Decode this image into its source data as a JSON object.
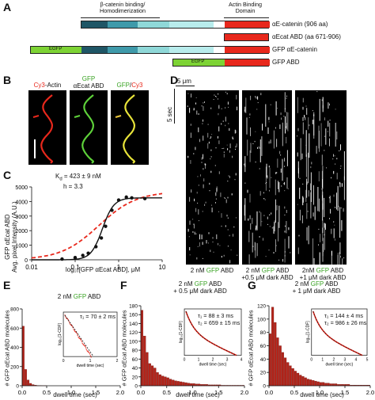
{
  "panel_labels": {
    "A": "A",
    "B": "B",
    "C": "C",
    "D": "D",
    "E": "E",
    "F": "F",
    "G": "G"
  },
  "panel_a": {
    "beta_catenin_label": "β-catenin binding/ Homodimerization",
    "abd_label": "Actin Binding Domain",
    "rows": [
      {
        "label": "αE-catenin (906 aa)"
      },
      {
        "label": "αEcat ABD (aa 671-906)"
      },
      {
        "label": "GFP αE-catenin",
        "tag": "EGFP"
      },
      {
        "label": "GFP ABD",
        "tag": "EGFP"
      }
    ],
    "colors": {
      "dark_teal": "#1f5666",
      "mid_teal": "#3f9aaa",
      "light_teal": "#8fd8d8",
      "pale_teal": "#b8ecec",
      "abd_red": "#e8281c",
      "egfp_green": "#7dd334"
    }
  },
  "panel_b": {
    "col1_parts": [
      "Cy3",
      "-Actin"
    ],
    "col2_parts": [
      "GFP",
      "αEcat ABD"
    ],
    "col3_parts": [
      "GFP",
      "/",
      "Cy3"
    ]
  },
  "panel_c": {
    "kd_text": "K",
    "kd_sub": "d",
    "kd_value": " = 423 ± 9 nM",
    "h_text": "h = 3.3",
    "ylabel_line1": "GFP αEcat ABD",
    "ylabel_line2": "Avg. pixel Intensity (A.U.)",
    "xlabel": "log₁₀[GFP αEcat ABD], μM",
    "chart_data": {
      "type": "scatter",
      "x_scale": "log",
      "xlim": [
        0.01,
        10
      ],
      "ylim": [
        0,
        5000
      ],
      "x_ticks": [
        "0.01",
        "0.1",
        "1",
        "10"
      ],
      "y_ticks": [
        "0",
        "1000",
        "2000",
        "3000",
        "4000",
        "5000"
      ],
      "series": [
        {
          "points": [
            [
              0.05,
              50
            ],
            [
              0.1,
              150
            ],
            [
              0.15,
              300
            ],
            [
              0.2,
              450
            ],
            [
              0.3,
              900
            ],
            [
              0.4,
              1500
            ],
            [
              0.5,
              2300
            ],
            [
              0.7,
              3400
            ],
            [
              1.0,
              4100
            ],
            [
              1.5,
              4300
            ],
            [
              2.0,
              4250
            ],
            [
              4.0,
              4200
            ]
          ]
        }
      ],
      "fits": [
        "hill",
        "hyperbolic"
      ]
    }
  },
  "panel_d": {
    "scale_x": "5 μm",
    "scale_t": "5 sec",
    "captions": [
      {
        "parts": [
          "2 nM ",
          "GFP",
          " ABD"
        ]
      },
      {
        "parts": [
          "2 nM ",
          "GFP",
          " ABD",
          "+0.5 μM dark ABD"
        ]
      },
      {
        "parts": [
          "2nM ",
          "GFP",
          " ABD",
          "+1 μM dark ABD"
        ]
      }
    ]
  },
  "hist_common": {
    "ylabel": "# GFP αEcat ABD molecules",
    "xlabel": "dwell time (sec)",
    "x_ticks": [
      "0.0",
      "0.5",
      "1.0",
      "1.5",
      "2.0"
    ],
    "inset_ylabel": "log₁₀[1-CDF]",
    "inset_xlabel": "dwell time (sec)"
  },
  "panel_e": {
    "title_parts": [
      "2 nM ",
      "GFP",
      " ABD"
    ],
    "y_ticks": [
      "0",
      "200",
      "400",
      "600",
      "800"
    ],
    "tau": "τ₁ = 70 ± 2 ms",
    "inset_x_ticks": [
      "0",
      "1",
      "2"
    ],
    "chart_data": {
      "type": "bar",
      "bin_width_s": 0.05,
      "values": [
        620,
        170,
        60,
        25,
        12,
        6,
        3,
        2,
        1,
        1,
        0,
        0,
        0,
        0,
        0,
        0,
        0,
        0,
        0,
        0,
        0,
        0,
        0,
        0,
        0,
        0,
        0,
        0,
        0,
        0,
        0,
        0,
        0,
        0,
        0,
        0,
        0,
        0,
        0,
        0
      ],
      "ylim": [
        0,
        800
      ],
      "xlim": [
        0,
        2
      ]
    }
  },
  "panel_f": {
    "title_line1_parts": [
      "2 nM ",
      "GFP",
      " ABD"
    ],
    "title_line2": "+ 0.5 μM dark ABD",
    "y_ticks": [
      "0",
      "20",
      "40",
      "60",
      "80",
      "100",
      "120",
      "140",
      "160",
      "180"
    ],
    "tau1": "τ₁ = 88 ± 3 ms",
    "tau2": "τ₂ = 659 ± 15 ms",
    "inset_x_ticks": [
      "0",
      "1",
      "2",
      "3",
      "4"
    ],
    "chart_data": {
      "type": "bar",
      "bin_width_s": 0.05,
      "values": [
        170,
        112,
        75,
        50,
        45,
        40,
        30,
        25,
        22,
        20,
        18,
        15,
        13,
        11,
        10,
        9,
        8,
        7,
        6,
        5,
        5,
        4,
        4,
        3,
        3,
        3,
        2,
        2,
        2,
        2,
        2,
        1,
        1,
        1,
        1,
        1,
        1,
        1,
        1,
        1
      ],
      "ylim": [
        0,
        180
      ],
      "xlim": [
        0,
        2
      ]
    }
  },
  "panel_g": {
    "title_line1_parts": [
      "2 nM ",
      "GFP",
      " ABD"
    ],
    "title_line2": "+ 1 μM dark ABD",
    "y_ticks": [
      "0",
      "20",
      "40",
      "60",
      "80",
      "100",
      "120"
    ],
    "tau1": "τ₁ = 144 ± 4 ms",
    "tau2": "τ₂ = 986 ± 26 ms",
    "inset_x_ticks": [
      "0",
      "1",
      "2",
      "3",
      "4",
      "5"
    ],
    "chart_data": {
      "type": "bar",
      "bin_width_s": 0.05,
      "values": [
        78,
        118,
        95,
        72,
        60,
        50,
        42,
        35,
        30,
        26,
        22,
        19,
        16,
        14,
        12,
        10,
        9,
        8,
        7,
        6,
        5,
        5,
        4,
        4,
        3,
        3,
        3,
        2,
        2,
        2,
        2,
        2,
        1,
        1,
        1,
        1,
        1,
        1,
        1,
        1
      ],
      "ylim": [
        0,
        120
      ],
      "xlim": [
        0,
        2
      ]
    }
  }
}
